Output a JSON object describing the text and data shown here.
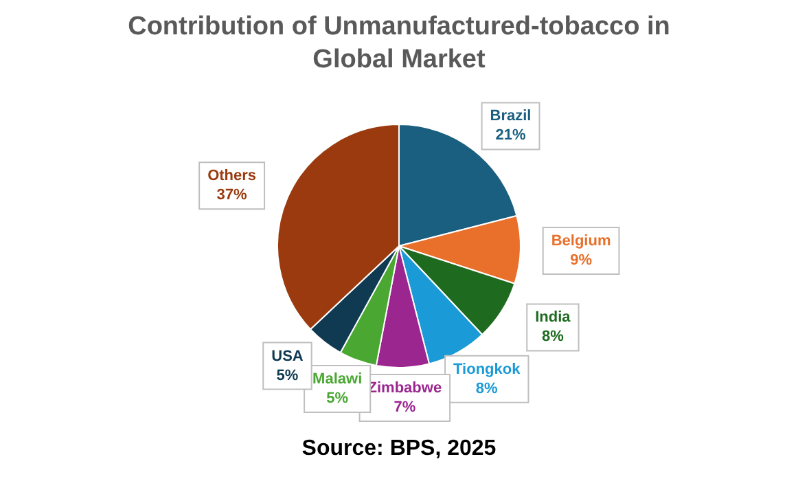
{
  "chart_data": {
    "type": "pie",
    "title": "Contribution of Unmanufactured-tobacco in Global Market",
    "categories": [
      "Brazil",
      "Belgium",
      "India",
      "Tiongkok",
      "Zimbabwe",
      "Malawi",
      "USA",
      "Others"
    ],
    "values": [
      21,
      9,
      8,
      8,
      7,
      5,
      5,
      37
    ],
    "colors": [
      "#1a5e80",
      "#e8702a",
      "#1e6b20",
      "#1a9ad6",
      "#9b2690",
      "#4aa832",
      "#0f3a52",
      "#9a3a0e"
    ],
    "value_labels": [
      "21%",
      "9%",
      "8%",
      "8%",
      "7%",
      "5%",
      "5%",
      "37%"
    ],
    "legend": false,
    "annotations": [
      "Source: BPS, 2025"
    ]
  }
}
